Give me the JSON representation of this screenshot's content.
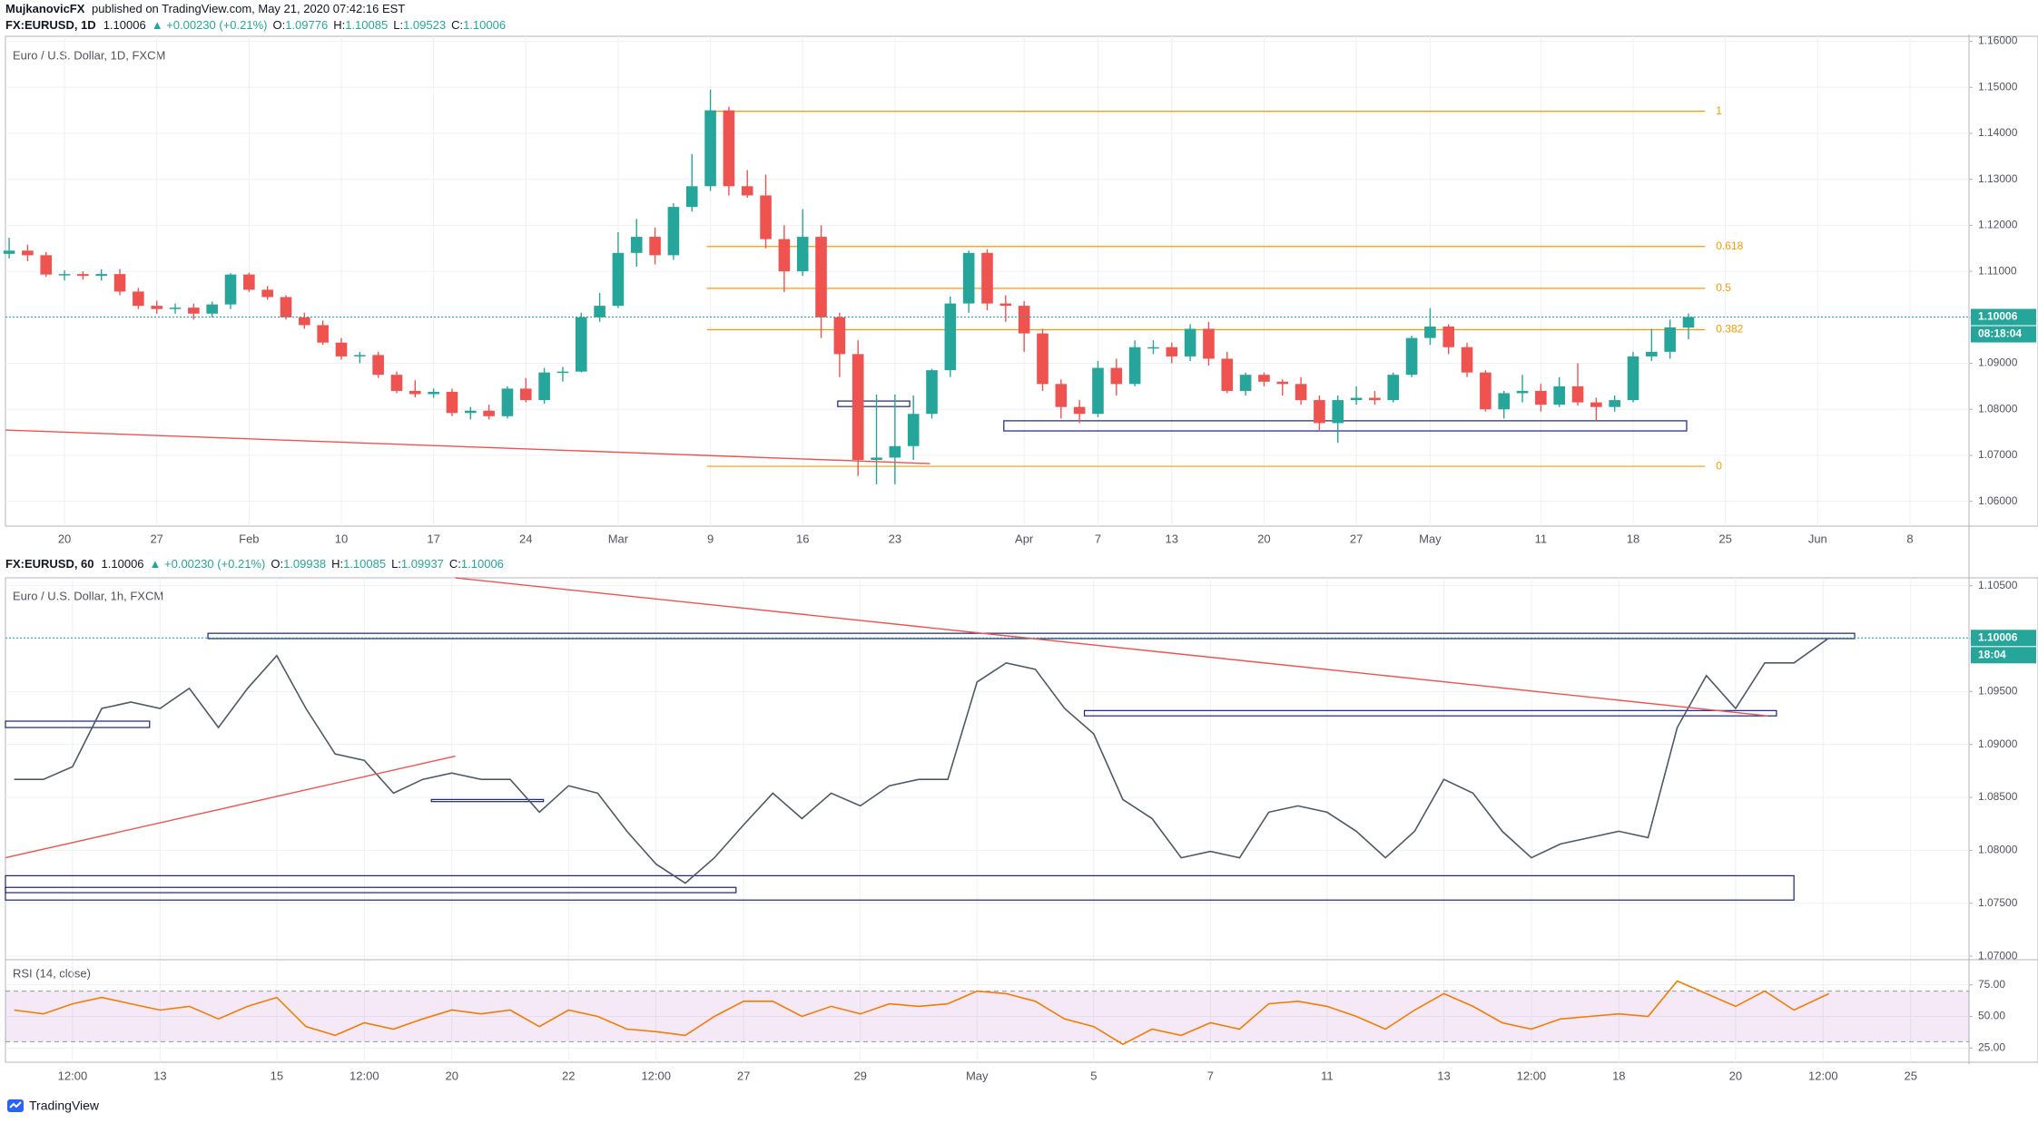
{
  "header": {
    "author": "MujkanovicFX",
    "published": "published on TradingView.com, May 21, 2020 07:42:16 EST"
  },
  "footer": {
    "brand": "TradingView"
  },
  "chart_data": [
    {
      "type": "candlestick",
      "symbol": "FX:EURUSD, 1D",
      "last": 1.10006,
      "change": "▲ +0.00230 (+0.21%)",
      "ohlc": [
        {
          "label": "O:",
          "value": 1.09776
        },
        {
          "label": "H:",
          "value": 1.10085
        },
        {
          "label": "L:",
          "value": 1.09523
        },
        {
          "label": "C:",
          "value": 1.10006
        }
      ],
      "title": "Euro / U.S. Dollar, 1D, FXCM",
      "up_color": "#26a69a",
      "down_color": "#ef5350",
      "x": [
        0,
        1,
        2,
        3,
        4,
        5,
        6,
        7,
        8,
        9,
        10,
        11,
        12,
        13,
        14,
        15,
        16,
        17,
        18,
        19,
        20,
        21,
        22,
        23,
        24,
        25,
        26,
        27,
        28,
        29,
        30,
        31,
        32,
        33,
        34,
        35,
        36,
        37,
        38,
        39,
        40,
        41,
        42,
        43,
        44,
        45,
        46,
        47,
        48,
        49,
        50,
        51,
        52,
        53,
        54,
        55,
        56,
        57,
        58,
        59,
        60,
        61,
        62,
        63,
        64,
        65,
        66,
        67,
        68,
        69,
        70,
        71,
        72,
        73,
        74,
        75,
        76,
        77,
        78,
        79,
        80,
        81,
        82,
        83,
        84,
        85,
        86,
        87,
        88,
        89,
        90,
        91
      ],
      "open": [
        1.1138,
        1.1145,
        1.1135,
        1.1093,
        1.1094,
        1.109,
        1.1094,
        1.1056,
        1.1025,
        1.1018,
        1.1021,
        1.1008,
        1.1028,
        1.1093,
        1.106,
        1.1044,
        1.1,
        1.0983,
        1.0945,
        1.0915,
        1.0918,
        1.0875,
        1.084,
        1.0833,
        1.0838,
        1.0792,
        1.0797,
        1.0785,
        1.0845,
        1.082,
        1.088,
        1.0882,
        1.1,
        1.1025,
        1.114,
        1.1175,
        1.1135,
        1.124,
        1.1285,
        1.145,
        1.1285,
        1.1265,
        1.117,
        1.11,
        1.1175,
        1.1,
        1.092,
        1.069,
        1.0695,
        1.072,
        1.079,
        1.0885,
        1.103,
        1.114,
        1.103,
        1.1025,
        1.0965,
        1.0855,
        1.0805,
        1.079,
        1.089,
        1.0855,
        1.0935,
        1.0935,
        1.0915,
        1.0975,
        1.091,
        1.084,
        1.0875,
        1.086,
        1.0855,
        1.082,
        1.077,
        1.082,
        1.0825,
        1.082,
        1.0875,
        1.0955,
        1.098,
        1.0935,
        1.088,
        1.08,
        1.0835,
        1.084,
        1.081,
        1.085,
        1.0815,
        1.0805,
        1.082,
        1.0915,
        1.0925,
        1.09776
      ],
      "high": [
        1.1173,
        1.1158,
        1.1142,
        1.1102,
        1.11,
        1.1104,
        1.1105,
        1.1064,
        1.1036,
        1.103,
        1.103,
        1.1034,
        1.1096,
        1.1097,
        1.1068,
        1.1048,
        1.101,
        1.0993,
        1.0955,
        1.0925,
        1.0925,
        1.0882,
        1.0863,
        1.0845,
        1.0845,
        1.0805,
        1.081,
        1.085,
        1.0868,
        1.089,
        1.0892,
        1.101,
        1.1053,
        1.1185,
        1.1214,
        1.1195,
        1.1248,
        1.1355,
        1.1495,
        1.1458,
        1.132,
        1.131,
        1.12,
        1.1235,
        1.12,
        1.101,
        1.095,
        1.0832,
        1.0832,
        1.083,
        1.0888,
        1.1045,
        1.1145,
        1.1148,
        1.1048,
        1.1035,
        1.0975,
        1.0865,
        1.082,
        1.0905,
        1.091,
        1.095,
        1.095,
        1.0945,
        1.0985,
        1.099,
        1.0925,
        1.088,
        1.088,
        1.0865,
        1.087,
        1.083,
        1.083,
        1.085,
        1.084,
        1.088,
        1.096,
        1.102,
        1.0985,
        1.0945,
        1.0885,
        1.084,
        1.0875,
        1.0855,
        1.087,
        1.09,
        1.0825,
        1.083,
        1.0925,
        1.0975,
        1.0995,
        1.10085
      ],
      "low": [
        1.1128,
        1.1122,
        1.1088,
        1.108,
        1.1082,
        1.108,
        1.1048,
        1.1018,
        1.1008,
        1.1008,
        1.0995,
        1.1,
        1.1018,
        1.1055,
        1.1038,
        1.0995,
        1.0975,
        1.094,
        1.0908,
        1.09,
        1.0868,
        1.0835,
        1.0826,
        1.0825,
        1.0785,
        1.0778,
        1.0778,
        1.078,
        1.0815,
        1.0812,
        1.086,
        1.088,
        1.099,
        1.102,
        1.111,
        1.1115,
        1.1125,
        1.123,
        1.1275,
        1.1265,
        1.126,
        1.115,
        1.1055,
        1.109,
        1.0955,
        1.087,
        1.0655,
        1.0637,
        1.0637,
        1.069,
        1.078,
        1.087,
        1.101,
        1.1015,
        1.099,
        1.0925,
        1.084,
        1.078,
        1.077,
        1.0783,
        1.083,
        1.085,
        1.092,
        1.09,
        1.0905,
        1.0895,
        1.0835,
        1.083,
        1.085,
        1.083,
        1.081,
        1.0755,
        1.0727,
        1.081,
        1.081,
        1.0815,
        1.087,
        1.094,
        1.092,
        1.087,
        1.0795,
        1.078,
        1.0815,
        1.0795,
        1.0805,
        1.0808,
        1.0775,
        1.0795,
        1.0815,
        1.0905,
        1.091,
        1.09523
      ],
      "close": [
        1.1145,
        1.1135,
        1.1093,
        1.1094,
        1.109,
        1.1094,
        1.1056,
        1.1025,
        1.1018,
        1.1021,
        1.1008,
        1.1028,
        1.1093,
        1.106,
        1.1044,
        1.1,
        1.0983,
        1.0945,
        1.0915,
        1.0918,
        1.0875,
        1.084,
        1.0833,
        1.0838,
        1.0792,
        1.0797,
        1.0785,
        1.0845,
        1.082,
        1.088,
        1.0882,
        1.1,
        1.1025,
        1.114,
        1.1175,
        1.1135,
        1.124,
        1.1285,
        1.145,
        1.1285,
        1.1265,
        1.117,
        1.11,
        1.1175,
        1.1,
        1.092,
        1.069,
        1.0695,
        1.072,
        1.079,
        1.0885,
        1.103,
        1.114,
        1.103,
        1.1025,
        1.0965,
        1.0855,
        1.0805,
        1.079,
        1.089,
        1.0855,
        1.0935,
        1.0935,
        1.0915,
        1.0975,
        1.091,
        1.084,
        1.0875,
        1.086,
        1.0855,
        1.082,
        1.077,
        1.082,
        1.0825,
        1.082,
        1.0875,
        1.0955,
        1.098,
        1.0935,
        1.088,
        1.08,
        1.0835,
        1.084,
        1.081,
        1.085,
        1.0815,
        1.0805,
        1.082,
        1.0915,
        1.0925,
        1.0978,
        1.10006
      ],
      "xlim": [
        -0.2,
        106.2
      ],
      "ylim": [
        1.0546,
        1.1611
      ],
      "xticks": [
        {
          "value": 3,
          "label": "20"
        },
        {
          "value": 8,
          "label": "27"
        },
        {
          "value": 13,
          "label": "Feb"
        },
        {
          "value": 18,
          "label": "10"
        },
        {
          "value": 23,
          "label": "17"
        },
        {
          "value": 28,
          "label": "24"
        },
        {
          "value": 33,
          "label": "Mar"
        },
        {
          "value": 38,
          "label": "9"
        },
        {
          "value": 43,
          "label": "16"
        },
        {
          "value": 48,
          "label": "23"
        },
        {
          "value": 55,
          "label": "Apr"
        },
        {
          "value": 59,
          "label": "7"
        },
        {
          "value": 63,
          "label": "13"
        },
        {
          "value": 68,
          "label": "20"
        },
        {
          "value": 73,
          "label": "27"
        },
        {
          "value": 77,
          "label": "May"
        },
        {
          "value": 83,
          "label": "11"
        },
        {
          "value": 88,
          "label": "18"
        },
        {
          "value": 93,
          "label": "25"
        },
        {
          "value": 98,
          "label": "Jun"
        },
        {
          "value": 103,
          "label": "8"
        }
      ],
      "yticks": [
        {
          "value": 1.06,
          "label": "1.06000"
        },
        {
          "value": 1.07,
          "label": "1.07000"
        },
        {
          "value": 1.08,
          "label": "1.08000"
        },
        {
          "value": 1.09,
          "label": "1.09000"
        },
        {
          "value": 1.1,
          "label": "1.10000"
        },
        {
          "value": 1.11,
          "label": "1.11000"
        },
        {
          "value": 1.12,
          "label": "1.12000"
        },
        {
          "value": 1.13,
          "label": "1.13000"
        },
        {
          "value": 1.14,
          "label": "1.14000"
        },
        {
          "value": 1.15,
          "label": "1.15000"
        },
        {
          "value": 1.16,
          "label": "1.16000"
        }
      ],
      "grid": true,
      "last_price": 1.10006,
      "countdown": "08:18:04",
      "last_color": "#26a69a",
      "fib": {
        "x": [
          37.8,
          91.9
        ],
        "color": "#ff9800",
        "levels": [
          {
            "ratio": 1,
            "value": 1.1448
          },
          {
            "ratio": 0.618,
            "value": 1.1154
          },
          {
            "ratio": 0.5,
            "value": 1.1063
          },
          {
            "ratio": 0.382,
            "value": 1.0973
          },
          {
            "ratio": 0,
            "value": 1.0676
          }
        ]
      },
      "trendlines": [
        {
          "x": [
            -0.2,
            49.9
          ],
          "y": [
            1.0755,
            1.0682
          ],
          "color": "#ef5350"
        }
      ],
      "boxes": [
        {
          "x": [
            53.9,
            90.9
          ],
          "y": [
            1.0753,
            1.0775
          ],
          "color": "#1a237e"
        },
        {
          "x": [
            44.9,
            48.8
          ],
          "y": [
            1.0806,
            1.0818
          ],
          "color": "#1a237e"
        }
      ]
    },
    {
      "type": "line",
      "symbol": "FX:EURUSD, 60",
      "last": 1.10006,
      "change": "▲ +0.00230 (+0.21%)",
      "ohlc": [
        {
          "label": "O:",
          "value": 1.09938
        },
        {
          "label": "H:",
          "value": 1.10085
        },
        {
          "label": "L:",
          "value": 1.09937
        },
        {
          "label": "C:",
          "value": 1.10006
        }
      ],
      "title": "Euro / U.S. Dollar, 1h, FXCM",
      "color": "#4f5966",
      "x": [
        -2.5,
        -2,
        -1.5,
        -1,
        -0.5,
        0,
        0.5,
        1,
        1.5,
        2,
        2.5,
        3,
        3.5,
        4,
        4.5,
        5,
        5.5,
        6,
        6.5,
        7,
        7.5,
        8,
        8.5,
        9,
        9.5,
        10,
        10.5,
        11,
        11.5,
        12,
        12.5,
        13,
        13.5,
        14,
        14.5,
        15,
        15.5,
        16,
        16.5,
        17,
        17.5,
        18,
        18.5,
        19,
        19.5,
        20,
        20.5,
        21,
        21.5,
        22,
        22.5,
        23,
        23.5,
        24,
        24.5,
        25,
        25.5,
        26,
        26.5,
        27,
        27.5,
        28,
        28.6
      ],
      "values": [
        1.0867,
        1.0867,
        1.0879,
        1.0934,
        1.094,
        1.0934,
        1.0953,
        1.0916,
        1.0953,
        1.0984,
        1.0934,
        1.0891,
        1.0885,
        1.0854,
        1.0867,
        1.0873,
        1.0867,
        1.0867,
        1.0836,
        1.0861,
        1.0854,
        1.0818,
        1.0787,
        1.0769,
        1.0793,
        1.0824,
        1.0854,
        1.083,
        1.0854,
        1.0842,
        1.0861,
        1.0867,
        1.0867,
        1.0959,
        1.0977,
        1.0971,
        1.0934,
        1.091,
        1.0848,
        1.083,
        1.0793,
        1.0799,
        1.0793,
        1.0836,
        1.0842,
        1.0836,
        1.0818,
        1.0793,
        1.0818,
        1.0867,
        1.0854,
        1.0818,
        1.0793,
        1.0806,
        1.0812,
        1.0818,
        1.0812,
        1.0916,
        1.0965,
        1.0934,
        1.0977,
        1.0977,
        1.10006
      ],
      "xlim": [
        -2.65,
        31.0
      ],
      "ylim": [
        1.06975,
        1.10574
      ],
      "xticks": [
        {
          "value": -1.5,
          "label": "12:00"
        },
        {
          "value": 0,
          "label": "13"
        },
        {
          "value": 2,
          "label": "15"
        },
        {
          "value": 3.5,
          "label": "12:00"
        },
        {
          "value": 5,
          "label": "20"
        },
        {
          "value": 7,
          "label": "22"
        },
        {
          "value": 8.5,
          "label": "12:00"
        },
        {
          "value": 10,
          "label": "27"
        },
        {
          "value": 12,
          "label": "29"
        },
        {
          "value": 14,
          "label": "May"
        },
        {
          "value": 16,
          "label": "5"
        },
        {
          "value": 18,
          "label": "7"
        },
        {
          "value": 20,
          "label": "11"
        },
        {
          "value": 22,
          "label": "13"
        },
        {
          "value": 23.5,
          "label": "12:00"
        },
        {
          "value": 25,
          "label": "18"
        },
        {
          "value": 27,
          "label": "20"
        },
        {
          "value": 28.5,
          "label": "12:00"
        },
        {
          "value": 30,
          "label": "25"
        }
      ],
      "yticks": [
        {
          "value": 1.07,
          "label": "1.07000"
        },
        {
          "value": 1.075,
          "label": "1.07500"
        },
        {
          "value": 1.08,
          "label": "1.08000"
        },
        {
          "value": 1.085,
          "label": "1.08500"
        },
        {
          "value": 1.09,
          "label": "1.09000"
        },
        {
          "value": 1.095,
          "label": "1.09500"
        },
        {
          "value": 1.1,
          "label": "1.10000"
        },
        {
          "value": 1.105,
          "label": "1.10500"
        }
      ],
      "grid": true,
      "last_price": 1.10006,
      "countdown": "18:04",
      "last_color": "#26a69a",
      "trendlines": [
        {
          "x": [
            5.06,
            27.55
          ],
          "y": [
            1.10574,
            1.0927
          ],
          "color": "#ef5350"
        },
        {
          "x": [
            -2.65,
            5.06
          ],
          "y": [
            1.0793,
            1.0889
          ],
          "color": "#ef5350"
        }
      ],
      "boxes": [
        {
          "x": [
            0.82,
            29.04
          ],
          "y": [
            1.1,
            1.1005
          ],
          "color": "#1a237e"
        },
        {
          "x": [
            15.84,
            27.7
          ],
          "y": [
            1.0927,
            1.0932
          ],
          "color": "#1a237e"
        },
        {
          "x": [
            -2.65,
            -0.18
          ],
          "y": [
            1.0916,
            1.0922
          ],
          "color": "#1a237e"
        },
        {
          "x": [
            4.65,
            6.57
          ],
          "y": [
            1.0846,
            1.0848
          ],
          "color": "#1a237e"
        },
        {
          "x": [
            -2.65,
            28.0
          ],
          "y": [
            1.0753,
            1.0776
          ],
          "color": "#1a237e"
        },
        {
          "x": [
            -2.65,
            9.87
          ],
          "y": [
            1.076,
            1.0765
          ],
          "color": "#1a237e"
        }
      ]
    },
    {
      "type": "line",
      "title": "RSI (14, close)",
      "color": "#f57c00",
      "x": [
        -2.5,
        -2,
        -1.5,
        -1,
        -0.5,
        0,
        0.5,
        1,
        1.5,
        2,
        2.5,
        3,
        3.5,
        4,
        4.5,
        5,
        5.5,
        6,
        6.5,
        7,
        7.5,
        8,
        8.5,
        9,
        9.5,
        10,
        10.5,
        11,
        11.5,
        12,
        12.5,
        13,
        13.5,
        14,
        14.5,
        15,
        15.5,
        16,
        16.5,
        17,
        17.5,
        18,
        18.5,
        19,
        19.5,
        20,
        20.5,
        21,
        21.5,
        22,
        22.5,
        23,
        23.5,
        24,
        24.5,
        25,
        25.5,
        26,
        26.5,
        27,
        27.5,
        28,
        28.6
      ],
      "values": [
        55,
        52,
        60,
        65,
        60,
        55,
        58,
        48,
        58,
        65,
        42,
        35,
        45,
        40,
        48,
        55,
        52,
        55,
        42,
        55,
        50,
        40,
        38,
        35,
        50,
        62,
        62,
        50,
        58,
        52,
        60,
        58,
        60,
        70,
        68,
        62,
        48,
        42,
        28,
        40,
        35,
        45,
        40,
        60,
        62,
        58,
        50,
        40,
        55,
        68,
        58,
        45,
        40,
        48,
        50,
        52,
        50,
        78,
        68,
        58,
        70,
        55,
        68
      ],
      "xlim": [
        -2.65,
        31.0
      ],
      "ylim": [
        13.8,
        93.4
      ],
      "yticks": [
        {
          "value": 25,
          "label": "25.00"
        },
        {
          "value": 50,
          "label": "50.00"
        },
        {
          "value": 75,
          "label": "75.00"
        }
      ],
      "band": [
        30,
        70
      ],
      "band_color": "#9c27b0"
    }
  ]
}
